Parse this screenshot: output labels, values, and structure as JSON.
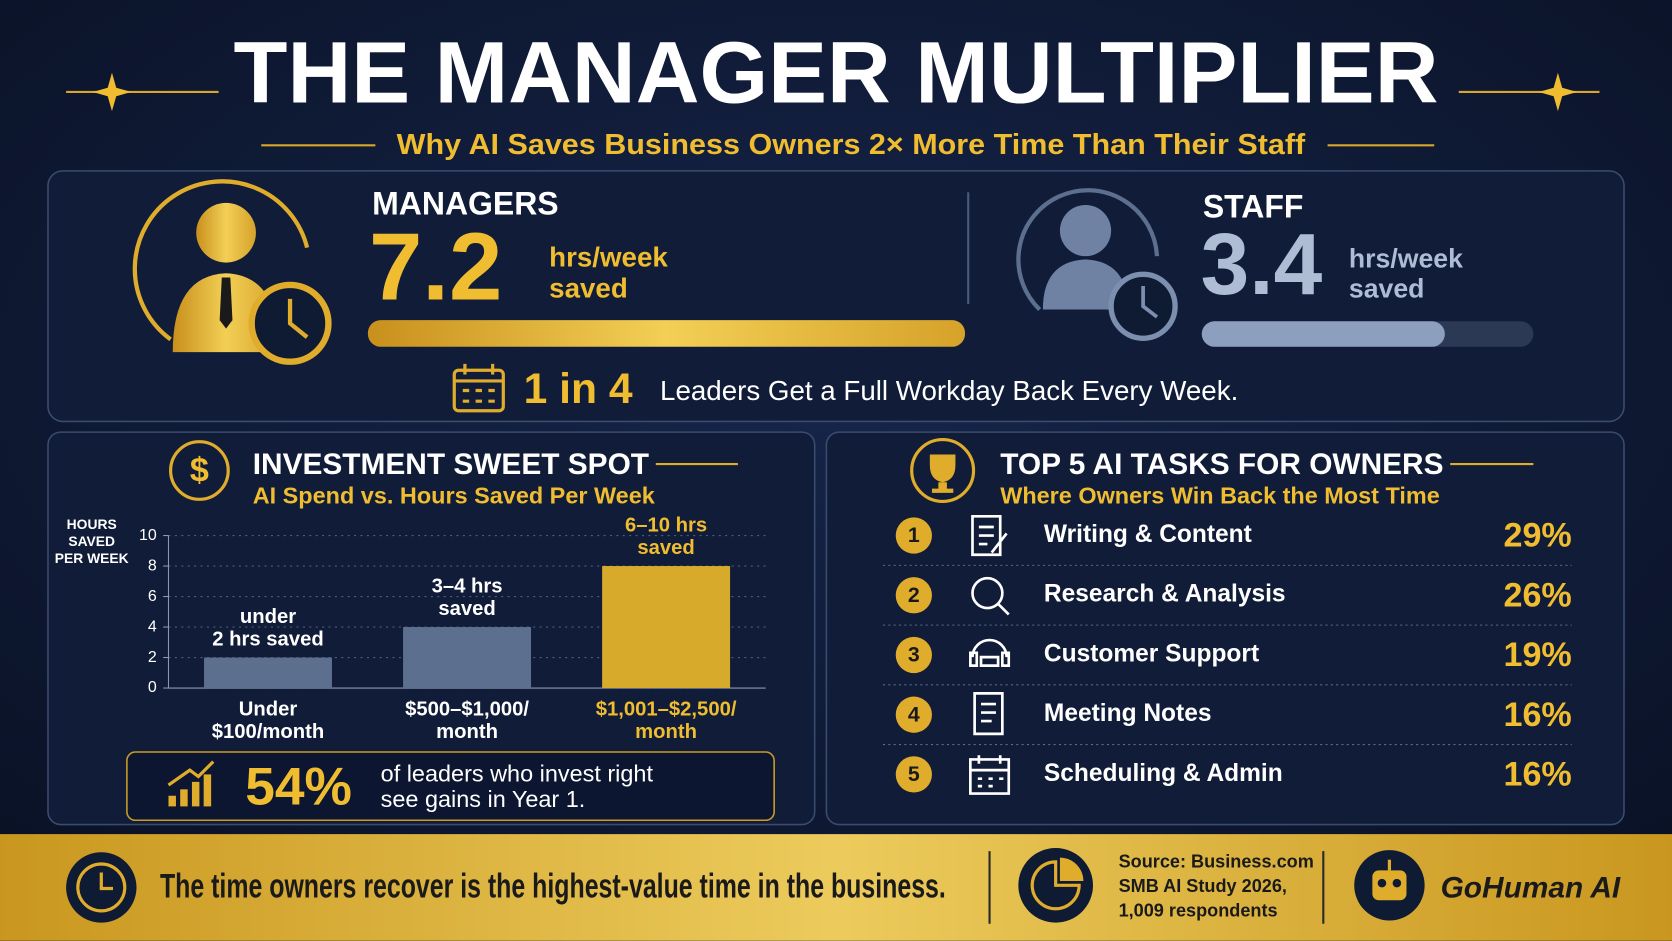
{
  "header": {
    "title": "THE MANAGER MULTIPLIER",
    "subtitle": "Why AI Saves Business Owners 2× More Time Than Their Staff"
  },
  "managers": {
    "label": "MANAGERS",
    "value": "7.2",
    "unit": "hrs/week",
    "unit2": "saved"
  },
  "staff": {
    "label": "STAFF",
    "value": "3.4",
    "unit": "hrs/week",
    "unit2": "saved"
  },
  "highlight": {
    "stat": "1 in 4",
    "text": "Leaders Get a Full Workday Back Every Week."
  },
  "investment": {
    "title": "INVESTMENT SWEET SPOT",
    "subtitle": "AI Spend vs. Hours Saved Per Week",
    "callout_stat": "54%",
    "callout_text": [
      "of leaders who invest right",
      "see gains in Year 1."
    ]
  },
  "chart_data": {
    "type": "bar",
    "y_label": "HOURS\nSAVED\nPER WEEK",
    "categories": [
      "Under\n$100/month",
      "$500–$1,000/\nmonth",
      "$1,001–$2,500/\nmonth"
    ],
    "values": [
      2,
      4,
      8
    ],
    "value_labels": [
      "under\n2 hrs saved",
      "3–4 hrs\nsaved",
      "6–10 hrs\nsaved"
    ],
    "colors": [
      "#5d6f8e",
      "#5d6f8e",
      "#d8aa2c"
    ],
    "ylim": [
      0,
      10
    ],
    "yticks": [
      0,
      2,
      4,
      6,
      8,
      10
    ],
    "grid": true
  },
  "tasks": {
    "title": "TOP 5 AI TASKS FOR OWNERS",
    "subtitle": "Where Owners Win Back the Most Time",
    "items": [
      {
        "rank": "1",
        "label": "Writing & Content",
        "share": "29%"
      },
      {
        "rank": "2",
        "label": "Research & Analysis",
        "share": "26%"
      },
      {
        "rank": "3",
        "label": "Customer Support",
        "share": "19%"
      },
      {
        "rank": "4",
        "label": "Meeting Notes",
        "share": "16%"
      },
      {
        "rank": "5",
        "label": "Scheduling & Admin",
        "share": "16%"
      }
    ]
  },
  "footer": {
    "quote": "The time owners recover is the highest-value time in the business.",
    "source": [
      "Source: Business.com",
      "SMB AI Study 2026,",
      "1,009 respondents"
    ],
    "brand": "GoHuman AI"
  }
}
